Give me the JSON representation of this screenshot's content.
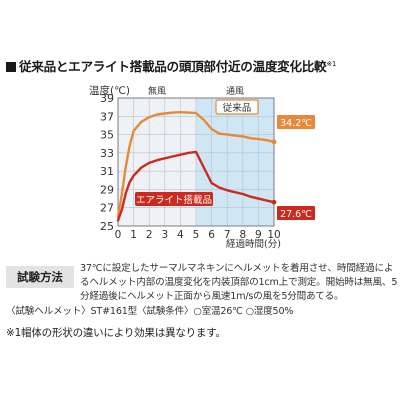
{
  "title": "従来品とエアライト搭載品の頭頂部付近の温度変化比較",
  "title_note": "※1",
  "chart_data": {
    "type": "line",
    "ylabel": "温度(℃)",
    "xlabel": "経過時間(分)",
    "xlim": [
      0,
      10
    ],
    "ylim": [
      25,
      39
    ],
    "xticks": [
      "0",
      "1",
      "2",
      "3",
      "4",
      "5",
      "6",
      "7",
      "8",
      "9",
      "10"
    ],
    "yticks": [
      "25",
      "27",
      "29",
      "31",
      "33",
      "35",
      "37",
      "39"
    ],
    "grid": true,
    "regions": [
      {
        "label": "無風",
        "x_range": [
          0,
          5
        ],
        "color": "#eef1f5"
      },
      {
        "label": "通風",
        "x_range": [
          5,
          10
        ],
        "color": "#cfe6f5"
      }
    ],
    "series": [
      {
        "name": "従来品",
        "color": "#e8893a",
        "end_label": "34.2℃",
        "x": [
          0,
          0.25,
          0.5,
          0.75,
          1,
          1.5,
          2,
          2.5,
          3,
          3.5,
          4,
          4.5,
          5,
          5.5,
          6,
          6.5,
          7,
          7.5,
          8,
          8.5,
          9,
          9.5,
          10
        ],
        "y": [
          26.0,
          28.5,
          31.5,
          33.8,
          35.4,
          36.4,
          36.9,
          37.2,
          37.3,
          37.4,
          37.45,
          37.4,
          37.35,
          36.6,
          35.6,
          35.1,
          35.0,
          34.9,
          34.8,
          34.6,
          34.5,
          34.4,
          34.2
        ]
      },
      {
        "name": "エアライト搭載品",
        "color": "#cc2a1f",
        "end_label": "27.6℃",
        "x": [
          0,
          0.25,
          0.5,
          0.75,
          1,
          1.5,
          2,
          2.5,
          3,
          3.5,
          4,
          4.5,
          5,
          5.5,
          6,
          6.5,
          7,
          7.5,
          8,
          8.5,
          9,
          9.5,
          10
        ],
        "y": [
          25.6,
          26.8,
          28.6,
          29.8,
          30.5,
          31.4,
          31.9,
          32.2,
          32.4,
          32.6,
          32.8,
          33.0,
          33.1,
          31.4,
          29.7,
          29.2,
          28.9,
          28.7,
          28.5,
          28.2,
          28.0,
          27.8,
          27.6
        ]
      }
    ]
  },
  "test_method": {
    "label": "試験方法",
    "description": "37℃に設定したサーマルマネキンにヘルメットを着用させ、時間経過によるヘルメット内部の温度変化を内装頂部の1cm上で測定。開始時は無風、5分経過後にヘルメット正面から風速1m/sの風を5分間あてる。",
    "conditions": "〈試験ヘルメット〉ST#161型〈試験条件〉○室温26℃ ○湿度50%"
  },
  "note": "※1帽体の形状の違いにより効果は異なります。"
}
